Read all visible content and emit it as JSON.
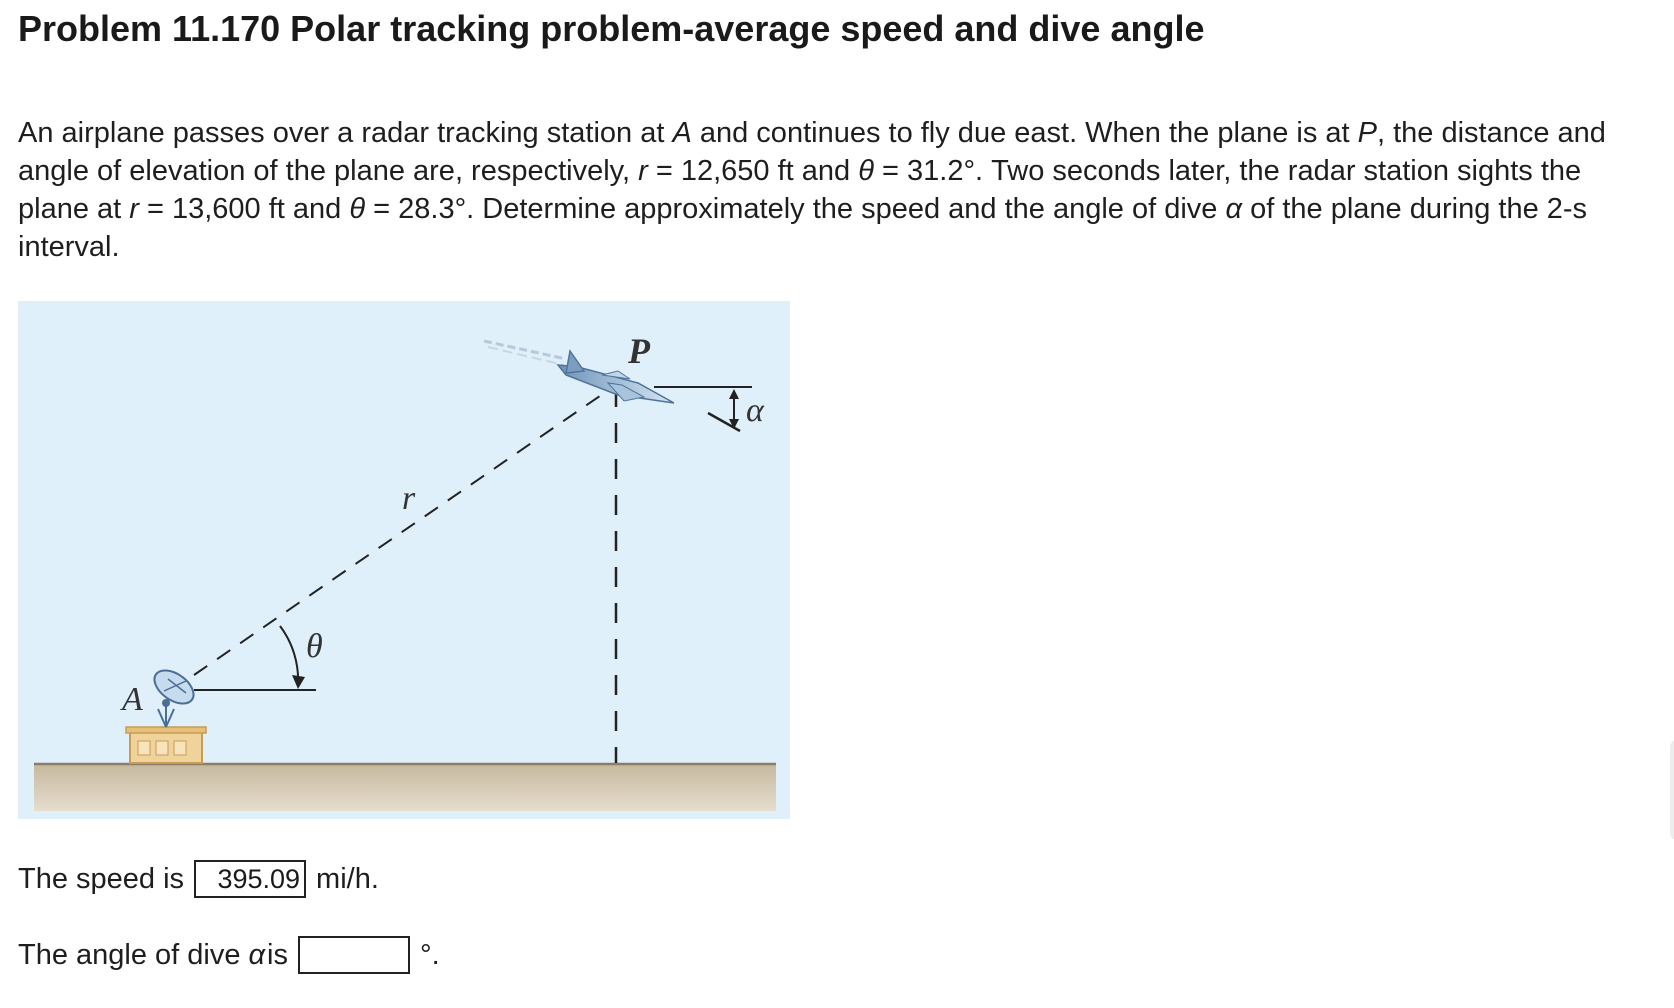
{
  "problem": {
    "title": "Problem 11.170 Polar tracking problem-average speed and dive angle",
    "statement": {
      "s1": "An airplane passes over a radar tracking station at ",
      "var_A": "A",
      "s2": " and continues to fly due east. When the plane is at ",
      "var_P": "P",
      "s3": ", the distance and angle of elevation of the plane are, respectively, ",
      "var_r1": "r",
      "s4": " = 12,650 ft and ",
      "var_theta1": "θ",
      "s5": " = 31.2°. Two seconds later, the radar station sights the plane at ",
      "var_r2": "r",
      "s6": " = 13,600 ft and ",
      "var_theta2": "θ",
      "s7": " = 28.3°. Determine approximately the speed and the angle of dive ",
      "var_alpha": "α",
      "s8": " of the plane during the 2-s interval."
    }
  },
  "figure": {
    "label_A": "A",
    "label_P": "P",
    "label_r": "r",
    "label_theta": "θ",
    "label_alpha": "α",
    "colors": {
      "background": "#dff0fb",
      "ground": "#cdbfa9",
      "ground_edge": "#8b7d66",
      "station": "#e9c98a",
      "dish": "#5b87b5",
      "plane": "#8fb0cf"
    }
  },
  "answers": {
    "speed": {
      "prefix": "The speed is ",
      "value": "395.09",
      "unit": "mi/h."
    },
    "dive": {
      "prefix": "The angle of dive ",
      "var": "α",
      "mid": " is ",
      "value": "",
      "unit": "°."
    }
  }
}
